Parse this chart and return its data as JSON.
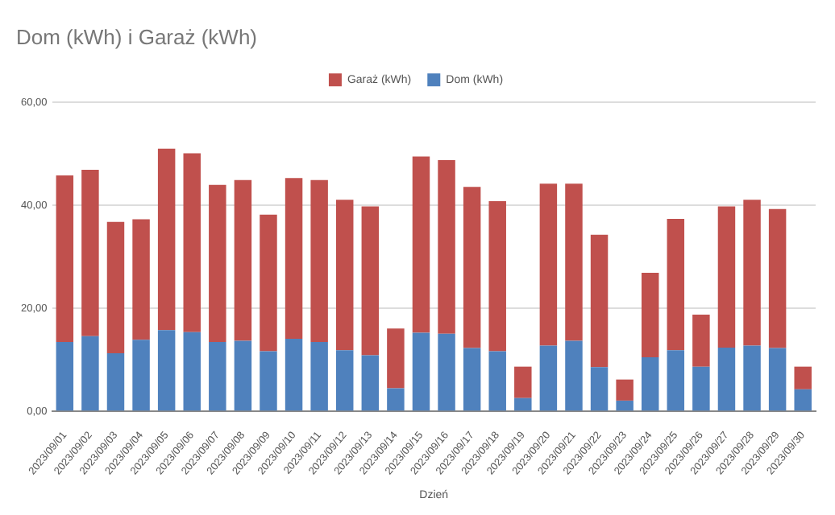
{
  "chart_data": {
    "type": "bar",
    "title": "Dom (kWh) i Garaż (kWh)",
    "xlabel": "Dzień",
    "stacked": true,
    "legend": "top",
    "grid": "y",
    "categories": [
      "2023/09/01",
      "2023/09/02",
      "2023/09/03",
      "2023/09/04",
      "2023/09/05",
      "2023/09/06",
      "2023/09/07",
      "2023/09/08",
      "2023/09/09",
      "2023/09/10",
      "2023/09/11",
      "2023/09/12",
      "2023/09/13",
      "2023/09/14",
      "2023/09/15",
      "2023/09/16",
      "2023/09/17",
      "2023/09/18",
      "2023/09/19",
      "2023/09/20",
      "2023/09/21",
      "2023/09/22",
      "2023/09/23",
      "2023/09/24",
      "2023/09/25",
      "2023/09/26",
      "2023/09/27",
      "2023/09/28",
      "2023/09/29",
      "2023/09/30"
    ],
    "series": [
      {
        "name": "Dom (kWh)",
        "color": "#4f81bd",
        "values": [
          13.5,
          14.6,
          11.3,
          13.9,
          15.8,
          15.4,
          13.5,
          13.7,
          11.7,
          14.1,
          13.5,
          11.9,
          10.9,
          4.5,
          15.3,
          15.1,
          12.3,
          11.7,
          2.6,
          12.8,
          13.7,
          8.6,
          2.1,
          10.5,
          11.9,
          8.7,
          12.4,
          12.8,
          12.3,
          4.3
        ]
      },
      {
        "name": "Garaż (kWh)",
        "color": "#c0504d",
        "values": [
          32.3,
          32.3,
          25.5,
          23.4,
          35.2,
          34.7,
          30.5,
          31.2,
          26.5,
          31.2,
          31.4,
          29.2,
          28.9,
          11.6,
          34.2,
          33.7,
          31.3,
          29.1,
          6.1,
          31.4,
          30.5,
          25.7,
          4.1,
          16.4,
          25.5,
          10.1,
          27.4,
          28.3,
          27.0,
          4.4
        ]
      }
    ],
    "ylim": [
      0,
      60
    ],
    "yticks": [
      {
        "value": 0,
        "label": "0,00"
      },
      {
        "value": 20,
        "label": "20,00"
      },
      {
        "value": 40,
        "label": "40,00"
      },
      {
        "value": 60,
        "label": "60,00"
      }
    ]
  }
}
